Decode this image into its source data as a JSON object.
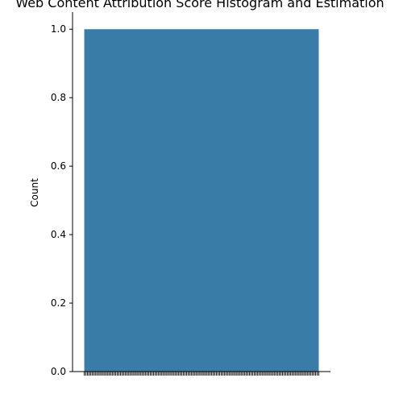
{
  "chart_data": {
    "type": "bar",
    "title": "Web Content Attribution Score Histogram and Estimation",
    "xlabel": "",
    "ylabel": "Count",
    "ylim": [
      0,
      1.05
    ],
    "yticks": [
      "0.0",
      "0.2",
      "0.4",
      "0.6",
      "0.8",
      "1.0"
    ],
    "bars": [
      {
        "x_start": 0,
        "x_end": 1,
        "value": 1.0
      }
    ],
    "xlim": [
      -0.05,
      1.05
    ],
    "bar_color": "#3a7ca8",
    "grid": false,
    "legend": "none"
  }
}
